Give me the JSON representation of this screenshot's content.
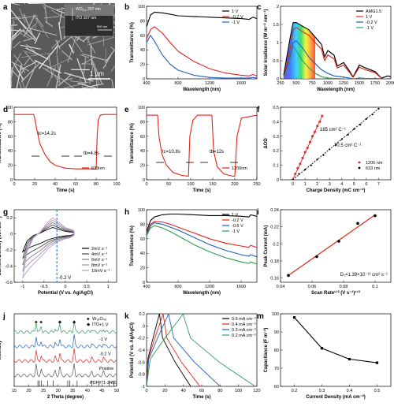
{
  "panel_letters": [
    "a",
    "b",
    "c",
    "d",
    "e",
    "f",
    "g",
    "h",
    "i",
    "j",
    "k",
    "m"
  ],
  "sem": {
    "inset_thickness_1": "WO",
    "inset_thickness_1_sub": "3-x",
    "inset_thickness_1_value": "207 nm",
    "inset_thickness_2": "ITO 107 nm",
    "inset_scale": "500 nm",
    "scale": "1 μm"
  },
  "chart_data": [
    {
      "id": "b",
      "type": "line",
      "xlabel": "Wavelength (nm)",
      "ylabel": "Transmittance (%)",
      "xlim": [
        400,
        1800
      ],
      "ylim": [
        0,
        100
      ],
      "xticks": [
        400,
        800,
        1200,
        1600
      ],
      "yticks": [
        0,
        20,
        40,
        60,
        80,
        100
      ],
      "legend_position": "center-right",
      "series": [
        {
          "name": "1 V",
          "color": "#000000",
          "x": [
            400,
            450,
            500,
            600,
            700,
            800,
            1000,
            1200,
            1400,
            1600,
            1700,
            1750,
            1800
          ],
          "y": [
            72,
            88,
            92,
            91,
            89,
            87,
            86,
            85,
            84,
            83,
            82,
            85,
            83
          ]
        },
        {
          "name": "-0.2 V",
          "color": "#e0261b",
          "x": [
            400,
            450,
            500,
            600,
            700,
            800,
            1000,
            1200,
            1400,
            1600,
            1700,
            1750,
            1800
          ],
          "y": [
            55,
            68,
            72,
            63,
            50,
            38,
            24,
            14,
            8,
            5,
            4,
            6,
            4
          ]
        },
        {
          "name": "-1 V",
          "color": "#1f5fbf",
          "x": [
            400,
            450,
            500,
            600,
            700,
            800,
            1000,
            1200,
            1400,
            1600,
            1700,
            1750,
            1800
          ],
          "y": [
            50,
            60,
            52,
            33,
            20,
            12,
            5,
            2,
            1,
            1,
            1,
            2,
            1
          ]
        }
      ]
    },
    {
      "id": "c",
      "type": "line",
      "xlabel": "Wavelength (nm)",
      "ylabel": "Solar irradiance (W m⁻² nm⁻¹)",
      "xlim": [
        250,
        2000
      ],
      "ylim": [
        0,
        2.0
      ],
      "xticks": [
        250,
        500,
        750,
        1000,
        1250,
        1500,
        1750,
        2000
      ],
      "yticks": [
        0.0,
        0.5,
        1.0,
        1.5,
        2.0
      ],
      "legend_position": "top-right",
      "series": [
        {
          "name": "AMG1.5",
          "color": "#000000",
          "x": [
            300,
            350,
            400,
            450,
            500,
            600,
            700,
            800,
            900,
            950,
            1000,
            1100,
            1150,
            1250,
            1350,
            1400,
            1500,
            1600,
            1750,
            1850,
            1950,
            2000
          ],
          "y": [
            0.1,
            0.6,
            1.1,
            1.55,
            1.55,
            1.45,
            1.35,
            1.15,
            0.95,
            0.6,
            0.78,
            0.65,
            0.35,
            0.45,
            0.2,
            0.05,
            0.38,
            0.3,
            0.2,
            0.02,
            0.08,
            0.06
          ]
        },
        {
          "name": "1 V",
          "color": "#e0261b",
          "x": [
            300,
            350,
            400,
            450,
            500,
            600,
            700,
            800,
            900,
            950,
            1000,
            1100,
            1150,
            1250,
            1350,
            1400,
            1500,
            1600,
            1750,
            1850
          ],
          "y": [
            0.05,
            0.4,
            0.8,
            1.35,
            1.42,
            1.3,
            1.2,
            1.0,
            0.82,
            0.5,
            0.66,
            0.55,
            0.3,
            0.38,
            0.17,
            0.04,
            0.32,
            0.25,
            0.17,
            0.02
          ]
        },
        {
          "name": "-0.2 V",
          "color": "#1f5fbf",
          "x": [
            300,
            350,
            400,
            450,
            500,
            600,
            700,
            800,
            900,
            1000,
            1100,
            1250,
            1400,
            1500,
            1600,
            1750,
            1850
          ],
          "y": [
            0.04,
            0.3,
            0.6,
            1.0,
            1.05,
            0.85,
            0.6,
            0.42,
            0.25,
            0.15,
            0.08,
            0.05,
            0.0,
            0.02,
            0.01,
            0.01,
            0.0
          ]
        },
        {
          "name": "-1 V",
          "color": "#2e9e58",
          "x": [
            300,
            350,
            400,
            450,
            500,
            600,
            700,
            800,
            900,
            1000,
            1100,
            1250,
            1400,
            1600,
            1850
          ],
          "y": [
            0.03,
            0.25,
            0.55,
            0.9,
            0.78,
            0.5,
            0.3,
            0.15,
            0.06,
            0.02,
            0.01,
            0.0,
            0.0,
            0.0,
            0.0
          ]
        }
      ]
    },
    {
      "id": "d",
      "type": "line",
      "xlabel": "Time (s)",
      "ylabel": "Transmittance (%)",
      "xlim": [
        0,
        100
      ],
      "ylim": [
        0,
        100
      ],
      "xticks": [
        0,
        20,
        40,
        60,
        80,
        100
      ],
      "yticks": [
        0,
        20,
        40,
        60,
        80,
        100
      ],
      "legend_position": "bottom-right",
      "annotations": [
        {
          "text": "tc=14.2s"
        },
        {
          "text": "tb=4.8s"
        }
      ],
      "series": [
        {
          "name": "633nm",
          "color": "#e0261b",
          "x": [
            0,
            19,
            20,
            22,
            25,
            30,
            35,
            40,
            50,
            60,
            70,
            80,
            81,
            82,
            84,
            88,
            100
          ],
          "y": [
            90,
            90,
            85,
            70,
            50,
            35,
            25,
            20,
            16,
            15,
            15,
            15,
            60,
            82,
            89,
            90,
            90
          ]
        }
      ]
    },
    {
      "id": "e",
      "type": "line",
      "xlabel": "Time (s)",
      "ylabel": "Transmittance (%)",
      "xlim": [
        0,
        250
      ],
      "ylim": [
        0,
        100
      ],
      "xticks": [
        0,
        50,
        100,
        150,
        200,
        250
      ],
      "yticks": [
        0,
        20,
        40,
        60,
        80,
        100
      ],
      "legend_position": "bottom-right",
      "annotations": [
        {
          "text": "tc=10.8s"
        },
        {
          "text": "tb=12s"
        }
      ],
      "series": [
        {
          "name": "1200nm",
          "color": "#e0261b",
          "x": [
            0,
            25,
            28,
            35,
            45,
            60,
            80,
            95,
            98,
            105,
            115,
            148,
            152,
            160,
            175,
            195,
            200,
            205,
            215,
            250
          ],
          "y": [
            89,
            89,
            60,
            35,
            20,
            10,
            6,
            5,
            60,
            82,
            89,
            89,
            40,
            18,
            8,
            5,
            5,
            60,
            85,
            89
          ]
        }
      ]
    },
    {
      "id": "f",
      "type": "scatter",
      "xlabel": "Charge Density (mC cm⁻²)",
      "ylabel": "ΔOD",
      "xlim": [
        -1,
        8
      ],
      "ylim": [
        0,
        0.5
      ],
      "xticks": [
        0,
        1,
        2,
        3,
        4,
        5,
        6,
        7
      ],
      "yticks": [
        0.0,
        0.1,
        0.2,
        0.3,
        0.4,
        0.5
      ],
      "legend_position": "bottom-right",
      "annotations": [
        {
          "text": "185 cm² C⁻¹",
          "color": "#e0261b"
        },
        {
          "text": "70.5 cm² C⁻¹",
          "color": "#000000"
        }
      ],
      "series": [
        {
          "name": "1200 nm",
          "color": "#e0261b",
          "x": [
            0.0,
            0.2,
            0.4,
            0.6,
            0.8,
            1.0,
            1.2,
            1.4,
            1.6,
            1.8,
            2.0,
            2.2,
            2.4
          ],
          "y": [
            0.0,
            0.04,
            0.08,
            0.11,
            0.15,
            0.19,
            0.22,
            0.26,
            0.3,
            0.33,
            0.37,
            0.4,
            0.44
          ]
        },
        {
          "name": "633 nm",
          "color": "#000000",
          "x": [
            0.0,
            0.5,
            1.0,
            1.5,
            2.0,
            2.5,
            3.0,
            3.5,
            4.0,
            4.5,
            5.0,
            5.5,
            6.0,
            6.5,
            7.0
          ],
          "y": [
            0.0,
            0.04,
            0.07,
            0.1,
            0.14,
            0.17,
            0.21,
            0.24,
            0.28,
            0.31,
            0.35,
            0.38,
            0.42,
            0.45,
            0.49
          ]
        }
      ]
    },
    {
      "id": "g",
      "type": "line",
      "xlabel": "Potential (V vs. Ag/AgCl)",
      "ylabel": "Current Density (mA cm⁻²)",
      "xlim": [
        -1.2,
        1.2
      ],
      "ylim": [
        -0.6,
        0.3
      ],
      "xticks": [
        -1.0,
        -0.5,
        0.0,
        0.5,
        1.0
      ],
      "yticks": [
        -0.6,
        -0.4,
        -0.2,
        0.0,
        0.2
      ],
      "legend_position": "bottom-right",
      "annotations": [
        {
          "text": "-0.2 V"
        }
      ],
      "series": [
        {
          "name": "2mV s⁻¹",
          "color": "#000000",
          "scale": 0.4
        },
        {
          "name": "4mV s⁻¹",
          "color": "#444444",
          "scale": 0.55
        },
        {
          "name": "6mV s⁻¹",
          "color": "#7a7a7a",
          "scale": 0.7
        },
        {
          "name": "8mV s⁻¹",
          "color": "#a58fa8",
          "scale": 0.85
        },
        {
          "name": "10mV s⁻¹",
          "color": "#b89bd1",
          "scale": 1.0
        }
      ]
    },
    {
      "id": "h",
      "type": "line",
      "xlabel": "Wavelength (nm)",
      "ylabel": "Transmittance (%)",
      "xlim": [
        400,
        1800
      ],
      "ylim": [
        0,
        100
      ],
      "xticks": [
        400,
        800,
        1200,
        1600
      ],
      "yticks": [
        0,
        20,
        40,
        60,
        80,
        100
      ],
      "legend_position": "top-right",
      "series": [
        {
          "name": "1 V",
          "color": "#000000",
          "x": [
            400,
            450,
            500,
            600,
            700,
            800,
            1000,
            1200,
            1400,
            1600,
            1700,
            1720,
            1800
          ],
          "y": [
            70,
            85,
            90,
            93,
            94,
            94,
            93,
            92,
            92,
            91,
            90,
            93,
            91
          ]
        },
        {
          "name": "-0.2 V",
          "color": "#e0261b",
          "x": [
            400,
            450,
            500,
            600,
            700,
            800,
            1000,
            1200,
            1400,
            1600,
            1700,
            1720,
            1800
          ],
          "y": [
            68,
            80,
            84,
            83,
            80,
            76,
            68,
            60,
            54,
            50,
            48,
            51,
            48
          ]
        },
        {
          "name": "-0.6 V",
          "color": "#1f5fbf",
          "x": [
            400,
            450,
            500,
            600,
            700,
            800,
            1000,
            1200,
            1400,
            1600,
            1700,
            1720,
            1800
          ],
          "y": [
            66,
            78,
            82,
            80,
            76,
            72,
            62,
            52,
            44,
            38,
            36,
            38,
            35
          ]
        },
        {
          "name": "-1 V",
          "color": "#2e9e58",
          "x": [
            400,
            450,
            500,
            600,
            700,
            800,
            1000,
            1200,
            1400,
            1600,
            1700,
            1720,
            1800
          ],
          "y": [
            64,
            75,
            78,
            75,
            70,
            64,
            52,
            42,
            34,
            28,
            26,
            28,
            25
          ]
        }
      ]
    },
    {
      "id": "i",
      "type": "scatter",
      "xlabel": "Scan Rate¹ᐟ² (V s⁻¹)¹ᐟ²",
      "ylabel": "Peak Current (mA)",
      "xlim": [
        0.04,
        0.11
      ],
      "ylim": [
        0.155,
        0.24
      ],
      "xticks": [
        0.04,
        0.06,
        0.08,
        0.1
      ],
      "yticks": [
        0.16,
        0.18,
        0.2,
        0.22,
        0.24
      ],
      "annotations": [
        {
          "text": "D₁=1.39×10⁻¹² cm² s⁻¹"
        }
      ],
      "series": [
        {
          "name": "data",
          "color": "#000000",
          "x": [
            0.045,
            0.063,
            0.077,
            0.089,
            0.1
          ],
          "y": [
            0.163,
            0.185,
            0.203,
            0.224,
            0.233
          ]
        }
      ]
    },
    {
      "id": "j",
      "type": "line",
      "xlabel": "2 Theta (degree)",
      "ylabel": "Intensity",
      "xlim": [
        15,
        50
      ],
      "ylim": [
        0,
        100
      ],
      "xticks": [
        15,
        20,
        25,
        30,
        35,
        40,
        45,
        50
      ],
      "yticks": [],
      "legend_position": "top-right",
      "legend": [
        {
          "name": "W₁₈O₄₉",
          "marker": "♣",
          "color": "#e0261b"
        },
        {
          "name": "ITO",
          "marker": "◆",
          "color": "#000000"
        }
      ],
      "reference": "PDF#71-2450",
      "series": [
        {
          "name": "+1 V",
          "color": "#2e9e58",
          "offset": 75
        },
        {
          "name": "-1 V",
          "color": "#1f5fbf",
          "offset": 55
        },
        {
          "name": "-0.2 V",
          "color": "#e0261b",
          "offset": 35
        },
        {
          "name": "Pristine",
          "color": "#555555",
          "offset": 15
        }
      ]
    },
    {
      "id": "k",
      "type": "line",
      "xlabel": "Time (s)",
      "ylabel": "Potential (V vs. Ag/AgCl)",
      "xlim": [
        0,
        120
      ],
      "ylim": [
        -1.0,
        0.2
      ],
      "xticks": [
        0,
        20,
        40,
        60,
        80,
        100,
        120
      ],
      "yticks": [
        -1.0,
        -0.8,
        -0.6,
        -0.4,
        -0.2,
        0.0,
        0.2
      ],
      "legend_position": "top-right",
      "series": [
        {
          "name": "0.5 mA cm⁻²",
          "color": "#000000",
          "t_charge": 14,
          "t_total": 48
        },
        {
          "name": "0.4 mA cm⁻²",
          "color": "#e0261b",
          "t_charge": 18,
          "t_total": 58
        },
        {
          "name": "0.3 mA cm⁻²",
          "color": "#1f5fbf",
          "t_charge": 24,
          "t_total": 80
        },
        {
          "name": "0.2 mA cm⁻²",
          "color": "#2e9e58",
          "t_charge": 40,
          "t_total": 118
        }
      ]
    },
    {
      "id": "m",
      "type": "line",
      "xlabel": "Current Density (mA cm⁻²)",
      "ylabel": "Capacitance (F m⁻²)",
      "xlim": [
        0.15,
        0.55
      ],
      "ylim": [
        60,
        100
      ],
      "xticks": [
        0.2,
        0.3,
        0.4,
        0.5
      ],
      "yticks": [
        60,
        70,
        80,
        90,
        100
      ],
      "series": [
        {
          "name": "capacitance",
          "color": "#000000",
          "x": [
            0.2,
            0.3,
            0.4,
            0.5
          ],
          "y": [
            98,
            81,
            75,
            73
          ]
        }
      ]
    }
  ]
}
